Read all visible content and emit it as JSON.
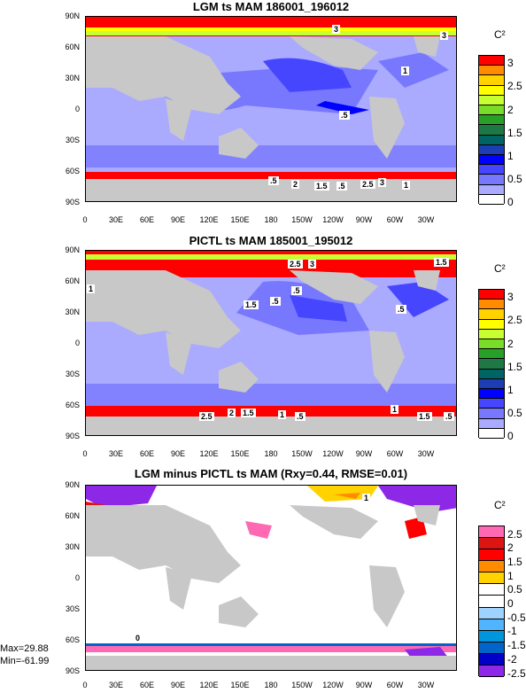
{
  "chart_data": [
    {
      "type": "heatmap",
      "title": "LGM ts MAM 186001_196012",
      "x_ticks": [
        "0",
        "30E",
        "60E",
        "90E",
        "120E",
        "150E",
        "180",
        "150W",
        "120W",
        "90W",
        "60W",
        "30W"
      ],
      "y_ticks": [
        "90N",
        "60N",
        "30N",
        "0",
        "30S",
        "60S",
        "90S"
      ],
      "colorbar": {
        "unit": "C²",
        "levels": [
          "3",
          "2.5",
          "2",
          "1.5",
          "1",
          "0.5",
          "0"
        ],
        "colors": [
          "#ff0000",
          "#ff8c00",
          "#ffd200",
          "#ffff00",
          "#c8ff32",
          "#78dc28",
          "#28a028",
          "#1e7846",
          "#006464",
          "#1e3cb4",
          "#0000ff",
          "#4646ff",
          "#7878ff",
          "#aaaaff",
          "#ffffff"
        ]
      },
      "contour_labels": [
        "3",
        ".5",
        "1",
        ".5",
        "2",
        "1.5",
        ".5",
        "2.5",
        "3",
        "1",
        "3"
      ]
    },
    {
      "type": "heatmap",
      "title": "PICTL ts MAM 185001_195012",
      "x_ticks": [
        "0",
        "30E",
        "60E",
        "90E",
        "120E",
        "150E",
        "180",
        "150W",
        "120W",
        "90W",
        "60W",
        "30W"
      ],
      "y_ticks": [
        "90N",
        "60N",
        "30N",
        "0",
        "30S",
        "60S",
        "90S"
      ],
      "colorbar": {
        "unit": "C²",
        "levels": [
          "3",
          "2.5",
          "2",
          "1.5",
          "1",
          "0.5",
          "0"
        ],
        "colors": [
          "#ff0000",
          "#ff8c00",
          "#ffd200",
          "#ffff00",
          "#c8ff32",
          "#78dc28",
          "#28a028",
          "#1e7846",
          "#006464",
          "#1e3cb4",
          "#0000ff",
          "#4646ff",
          "#7878ff",
          "#aaaaff",
          "#ffffff"
        ]
      },
      "contour_labels": [
        "2.5",
        "3",
        "1.5",
        "1.5",
        ".5",
        "1",
        ".5",
        ".5",
        "2.5",
        "2",
        "1.5",
        "1",
        ".5",
        "1",
        "1.5",
        ".5"
      ]
    },
    {
      "type": "heatmap",
      "title": "LGM minus PICTL ts MAM (Rxy=0.44, RMSE=0.01)",
      "x_ticks": [
        "0",
        "30E",
        "60E",
        "90E",
        "120E",
        "150E",
        "180",
        "150W",
        "120W",
        "90W",
        "60W",
        "30W"
      ],
      "y_ticks": [
        "90N",
        "60N",
        "30N",
        "0",
        "30S",
        "60S",
        "90S"
      ],
      "colorbar": {
        "unit": "C²",
        "levels": [
          "2.5",
          "2",
          "1.5",
          "1",
          "0.5",
          "0",
          "-0.5",
          "-1",
          "-1.5",
          "-2",
          "-2.5"
        ],
        "colors": [
          "#ff69b4",
          "#dc1414",
          "#ff0000",
          "#ff8c00",
          "#ffd200",
          "#ffffff",
          "#ffffff",
          "#a0d2ff",
          "#50b4ff",
          "#0096dc",
          "#0064c8",
          "#0000c8",
          "#8c28e6"
        ]
      },
      "contour_labels": [
        "1",
        "0"
      ],
      "max_label": "Max=29.88",
      "min_label": "Min=-61.99"
    }
  ]
}
